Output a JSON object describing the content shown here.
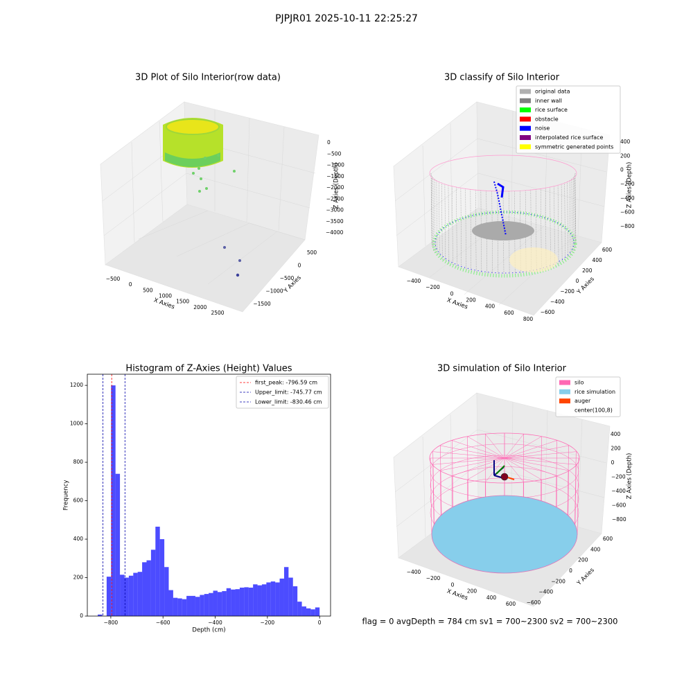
{
  "suptitle": "PJPJR01 2025-10-11 22:25:27",
  "footer": "flag = 0     avgDepth = 784 cm  sv1 = 700~2300  sv2 = 700~2300",
  "chart_data": [
    {
      "type": "scatter3d",
      "title": "3D Plot of Silo Interior(row data)",
      "xlabel": "X Axies",
      "ylabel": "Y Axies",
      "zlabel": "Z Axies (Depth)",
      "xlim": [
        -500,
        2500
      ],
      "xticks": [
        {
          "value": -500,
          "label": "−500"
        },
        0,
        500,
        1000,
        1500,
        2000,
        2500
      ],
      "ylim": [
        -1500,
        500
      ],
      "yticks": [
        {
          "value": -1500,
          "label": "−1500"
        },
        {
          "value": -1000,
          "label": "−1000"
        },
        {
          "value": -500,
          "label": "−500"
        },
        0,
        500
      ],
      "zlim": [
        -4000,
        0
      ],
      "zticks": [
        {
          "value": -4000,
          "label": "−4000"
        },
        {
          "value": -3500,
          "label": "−3500"
        },
        {
          "value": -3000,
          "label": "−3000"
        },
        {
          "value": -2500,
          "label": "−2500"
        },
        {
          "value": -2000,
          "label": "−2000"
        },
        {
          "value": -1500,
          "label": "−1500"
        },
        {
          "value": -1000,
          "label": "−1000"
        },
        {
          "value": -500,
          "label": "−500"
        },
        0
      ]
    },
    {
      "type": "scatter3d",
      "title": "3D classify of Silo Interior",
      "xlabel": "X Axies",
      "ylabel": "Y Axies",
      "zlabel": "Z Axies (Depth)",
      "xlim": [
        -400,
        800
      ],
      "xticks": [
        {
          "value": -400,
          "label": "−400"
        },
        {
          "value": -200,
          "label": "−200"
        },
        0,
        200,
        400,
        600,
        800
      ],
      "ylim": [
        -600,
        600
      ],
      "yticks": [
        {
          "value": -600,
          "label": "−600"
        },
        {
          "value": -400,
          "label": "−400"
        },
        {
          "value": -200,
          "label": "−200"
        },
        0,
        200,
        400,
        600
      ],
      "zlim": [
        -800,
        400
      ],
      "zticks": [
        {
          "value": -800,
          "label": "−800"
        },
        {
          "value": -600,
          "label": "−600"
        },
        {
          "value": -400,
          "label": "−400"
        },
        {
          "value": -200,
          "label": "−200"
        },
        0,
        200,
        400
      ],
      "series": [
        {
          "name": "original data",
          "color": "#b0b0b0"
        },
        {
          "name": "inner wall",
          "color": "#808080"
        },
        {
          "name": "rice surface",
          "color": "#00ff00"
        },
        {
          "name": "obstacle",
          "color": "#ff0000"
        },
        {
          "name": "noise",
          "color": "#0000ff"
        },
        {
          "name": "interpolated rice surface",
          "color": "#800080"
        },
        {
          "name": "symmetric generated points",
          "color": "#ffff00"
        }
      ]
    },
    {
      "type": "histogram",
      "title": "Histogram of Z-Axies (Height) Values",
      "xlabel": "Depth (cm)",
      "ylabel": "Frequency",
      "color": "#0000ff",
      "alpha": 0.7,
      "bins": [
        -850,
        -833,
        -816,
        -799,
        -782,
        -765,
        -748,
        -731,
        -714,
        -697,
        -680,
        -663,
        -646,
        -629,
        -612,
        -595,
        -578,
        -561,
        -544,
        -527,
        -510,
        -493,
        -476,
        -459,
        -442,
        -425,
        -408,
        -391,
        -374,
        -357,
        -340,
        -323,
        -306,
        -289,
        -272,
        -255,
        -238,
        -221,
        -204,
        -187,
        -170,
        -153,
        -136,
        -119,
        -102,
        -85,
        -68,
        -51,
        -34,
        -17,
        0
      ],
      "counts": [
        8,
        0,
        205,
        1200,
        740,
        215,
        200,
        210,
        225,
        230,
        280,
        290,
        345,
        465,
        400,
        255,
        135,
        95,
        92,
        88,
        105,
        105,
        100,
        110,
        115,
        120,
        132,
        125,
        130,
        145,
        138,
        140,
        148,
        150,
        148,
        165,
        160,
        165,
        175,
        180,
        175,
        195,
        255,
        200,
        155,
        75,
        50,
        40,
        35,
        45
      ],
      "xlim": [
        -890,
        42
      ],
      "xticks": [
        {
          "value": -800,
          "label": "−800"
        },
        {
          "value": -600,
          "label": "−600"
        },
        {
          "value": -400,
          "label": "−400"
        },
        {
          "value": -200,
          "label": "−200"
        },
        0
      ],
      "ylim": [
        0,
        1258
      ],
      "yticks": [
        0,
        200,
        400,
        600,
        800,
        1000,
        1200
      ],
      "vlines": [
        {
          "name": "first_peak: -796.59 cm",
          "value": -796.59,
          "color": "#ff0000"
        },
        {
          "name": "Upper_limit: -745.77 cm",
          "value": -745.77,
          "color": "#0000aa"
        },
        {
          "name": "Lower_limit: -830.46 cm",
          "value": -830.46,
          "color": "#0000aa"
        }
      ],
      "legend": "upper right"
    },
    {
      "type": "scatter3d",
      "title": "3D simulation of Silo Interior",
      "xlabel": "X Axies",
      "ylabel": "Y Axies",
      "zlabel": "Z Axies (Depth)",
      "xlim": [
        -400,
        600
      ],
      "xticks": [
        {
          "value": -400,
          "label": "−400"
        },
        {
          "value": -200,
          "label": "−200"
        },
        0,
        200,
        400,
        600
      ],
      "ylim": [
        -600,
        600
      ],
      "yticks": [
        {
          "value": -600,
          "label": "−600"
        },
        {
          "value": -400,
          "label": "−400"
        },
        {
          "value": -200,
          "label": "−200"
        },
        0,
        200,
        400,
        600
      ],
      "zlim": [
        -800,
        400
      ],
      "zticks": [
        {
          "value": -800,
          "label": "−800"
        },
        {
          "value": -600,
          "label": "−600"
        },
        {
          "value": -400,
          "label": "−400"
        },
        {
          "value": -200,
          "label": "−200"
        },
        0,
        200,
        400
      ],
      "series": [
        {
          "name": "silo",
          "color": "#ff69b4"
        },
        {
          "name": "rice simulation",
          "color": "#87ceeb"
        },
        {
          "name": "auger",
          "color": "#ff4500"
        },
        {
          "name": "center(100,8)",
          "color": "#ffffff"
        }
      ]
    }
  ]
}
